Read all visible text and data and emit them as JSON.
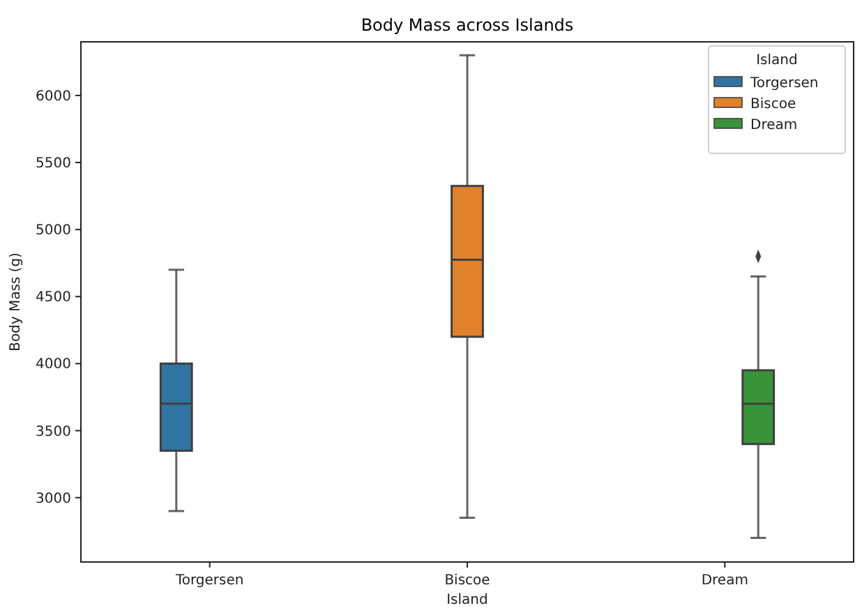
{
  "chart_data": {
    "type": "box",
    "title": "Body Mass across Islands",
    "xlabel": "Island",
    "ylabel": "Body Mass (g)",
    "legend_title": "Island",
    "legend": "top right",
    "categories": [
      "Torgersen",
      "Biscoe",
      "Dream"
    ],
    "ylim": [
      2520,
      6400
    ],
    "yticks": [
      3000,
      3500,
      4000,
      4500,
      5000,
      5500,
      6000
    ],
    "grid": false,
    "marker": "diamond",
    "series": [
      {
        "name": "Torgersen",
        "color": "#3274a1",
        "boxes": [
          {
            "low": 2900,
            "q1": 3350,
            "median": 3700,
            "q3": 4000,
            "high": 4700
          },
          null,
          null
        ]
      },
      {
        "name": "Biscoe",
        "color": "#e1812c",
        "boxes": [
          null,
          {
            "low": 2850,
            "q1": 4200,
            "median": 4775,
            "q3": 5325,
            "high": 6300
          },
          null
        ]
      },
      {
        "name": "Dream",
        "color": "#3a923a",
        "boxes": [
          null,
          null,
          {
            "low": 2700,
            "q1": 3400,
            "median": 3700,
            "q3": 3950,
            "high": 4650,
            "outliers": [
              4800
            ]
          }
        ]
      }
    ]
  }
}
